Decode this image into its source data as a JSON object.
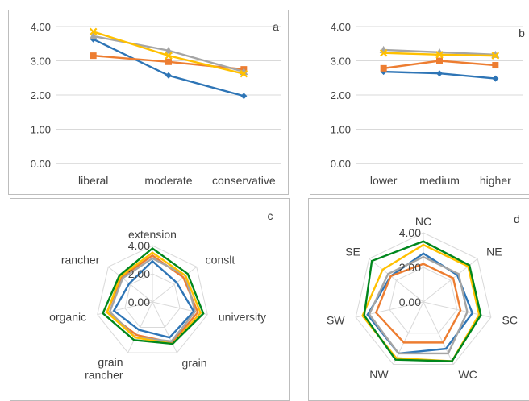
{
  "colors": {
    "s1": "#2e75b6",
    "s2": "#ed7d31",
    "s3": "#a5a5a5",
    "s4": "#ffc000",
    "s5": "#00871d",
    "grid": "#d9d9d9",
    "axis": "#bfbfbf"
  },
  "chart_data": [
    {
      "panel_letter": "a",
      "type": "line",
      "categories": [
        "liberal",
        "moderate",
        "conservative"
      ],
      "yticks": [
        "0.00",
        "1.00",
        "2.00",
        "3.00",
        "4.00"
      ],
      "ylim": [
        0,
        4
      ],
      "grid": true,
      "series": [
        {
          "values": [
            3.63,
            2.57,
            1.97
          ],
          "marker": "diamond",
          "color": "#2e75b6"
        },
        {
          "values": [
            3.15,
            2.97,
            2.75
          ],
          "marker": "square",
          "color": "#ed7d31"
        },
        {
          "values": [
            3.72,
            3.3,
            2.68
          ],
          "marker": "triangle",
          "color": "#a5a5a5"
        },
        {
          "values": [
            3.85,
            3.15,
            2.62
          ],
          "marker": "x",
          "color": "#ffc000"
        }
      ]
    },
    {
      "panel_letter": "b",
      "type": "line",
      "categories": [
        "lower",
        "medium",
        "higher"
      ],
      "yticks": [
        "0.00",
        "1.00",
        "2.00",
        "3.00",
        "4.00"
      ],
      "ylim": [
        0,
        4
      ],
      "grid": true,
      "series": [
        {
          "values": [
            2.68,
            2.63,
            2.48
          ],
          "marker": "diamond",
          "color": "#2e75b6"
        },
        {
          "values": [
            2.78,
            3.0,
            2.87
          ],
          "marker": "square",
          "color": "#ed7d31"
        },
        {
          "values": [
            3.32,
            3.25,
            3.18
          ],
          "marker": "triangle",
          "color": "#a5a5a5"
        },
        {
          "values": [
            3.23,
            3.18,
            3.15
          ],
          "marker": "x",
          "color": "#ffc000"
        }
      ]
    },
    {
      "panel_letter": "c",
      "type": "radar",
      "categories": [
        "extension",
        "conslt",
        "university",
        "grain",
        "grain\nrancher",
        "organic",
        "rancher"
      ],
      "rticks": [
        "0.00",
        "2.00",
        "4.00"
      ],
      "rlim": [
        0,
        4
      ],
      "series": [
        {
          "values": [
            2.9,
            2.2,
            3.0,
            2.8,
            2.2,
            2.8,
            2.1
          ],
          "color": "#2e75b6"
        },
        {
          "values": [
            3.3,
            2.8,
            3.3,
            3.2,
            2.6,
            3.3,
            2.8
          ],
          "color": "#ed7d31"
        },
        {
          "values": [
            3.1,
            3.0,
            3.1,
            3.1,
            2.8,
            3.1,
            2.7
          ],
          "color": "#a5a5a5"
        },
        {
          "values": [
            3.5,
            3.0,
            3.5,
            3.3,
            2.8,
            3.3,
            2.9
          ],
          "color": "#ffc000"
        },
        {
          "values": [
            3.8,
            3.2,
            3.7,
            3.3,
            3.0,
            3.6,
            3.0
          ],
          "color": "#00871d"
        }
      ]
    },
    {
      "panel_letter": "d",
      "type": "radar",
      "categories": [
        "NC",
        "NE",
        "SC",
        "WC",
        "NW",
        "SW",
        "SE"
      ],
      "rticks": [
        "0.00",
        "2.00",
        "4.00"
      ],
      "rlim": [
        0,
        4
      ],
      "series": [
        {
          "values": [
            2.8,
            2.5,
            2.9,
            3.0,
            3.3,
            3.3,
            2.4
          ],
          "color": "#2e75b6"
        },
        {
          "values": [
            2.2,
            2.2,
            2.2,
            2.6,
            2.6,
            2.8,
            2.4
          ],
          "color": "#ed7d31"
        },
        {
          "values": [
            2.6,
            2.6,
            2.6,
            3.3,
            3.3,
            3.2,
            2.6
          ],
          "color": "#a5a5a5"
        },
        {
          "values": [
            3.3,
            3.3,
            3.3,
            3.8,
            3.6,
            3.6,
            3.0
          ],
          "color": "#ffc000"
        },
        {
          "values": [
            3.5,
            3.4,
            3.4,
            3.8,
            3.7,
            3.5,
            3.8
          ],
          "color": "#00871d"
        }
      ]
    }
  ]
}
